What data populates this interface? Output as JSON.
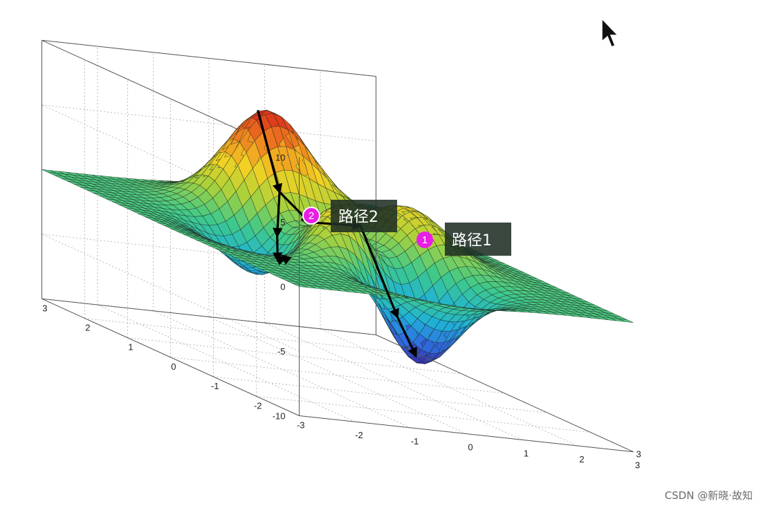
{
  "chart_data": {
    "type": "surface",
    "function": "peaks",
    "x_range": [
      -3,
      3
    ],
    "y_range": [
      -3,
      3
    ],
    "z_range": [
      -10,
      10
    ],
    "x_ticks": [
      -3,
      -2,
      -1,
      0,
      1,
      2,
      3
    ],
    "y_ticks": [
      -3,
      -2,
      -1,
      0,
      1,
      2,
      3
    ],
    "z_ticks": [
      -10,
      -5,
      0,
      5,
      10
    ],
    "x_tick_labels": [
      "",
      "-2",
      "-1",
      "0",
      "1",
      "2",
      "3"
    ],
    "y_tick_labels": [
      "-3",
      "-2",
      "-1",
      "0",
      "1",
      "2",
      "3"
    ],
    "z_tick_labels": [
      "-10",
      "-5",
      "0",
      "5",
      "10"
    ],
    "grid": true,
    "grid_style": "dotted",
    "colormap": [
      "#3a2da6",
      "#2f6fe0",
      "#1fb3d6",
      "#3fc98a",
      "#a8d13c",
      "#f2d124",
      "#f07f1f",
      "#d9241a"
    ],
    "annotations": [
      {
        "badge": "1",
        "label": "路径1"
      },
      {
        "badge": "2",
        "label": "路径2"
      }
    ],
    "paths": [
      {
        "name": "路径1",
        "points": [
          [
            -0.2,
            1.6
          ],
          [
            -0.35,
            0.9
          ],
          [
            -0.35,
            0.2
          ],
          [
            -0.05,
            -0.6
          ],
          [
            0.15,
            -1.2
          ],
          [
            0.25,
            -1.5
          ]
        ]
      },
      {
        "name": "路径2",
        "points": [
          [
            -0.2,
            1.6
          ],
          [
            -0.35,
            0.9
          ],
          [
            -0.7,
            0.5
          ],
          [
            -1.0,
            0.1
          ],
          [
            -1.25,
            -0.4
          ],
          [
            -1.45,
            -0.6
          ]
        ]
      }
    ]
  },
  "watermark": "CSDN @新晓·故知"
}
